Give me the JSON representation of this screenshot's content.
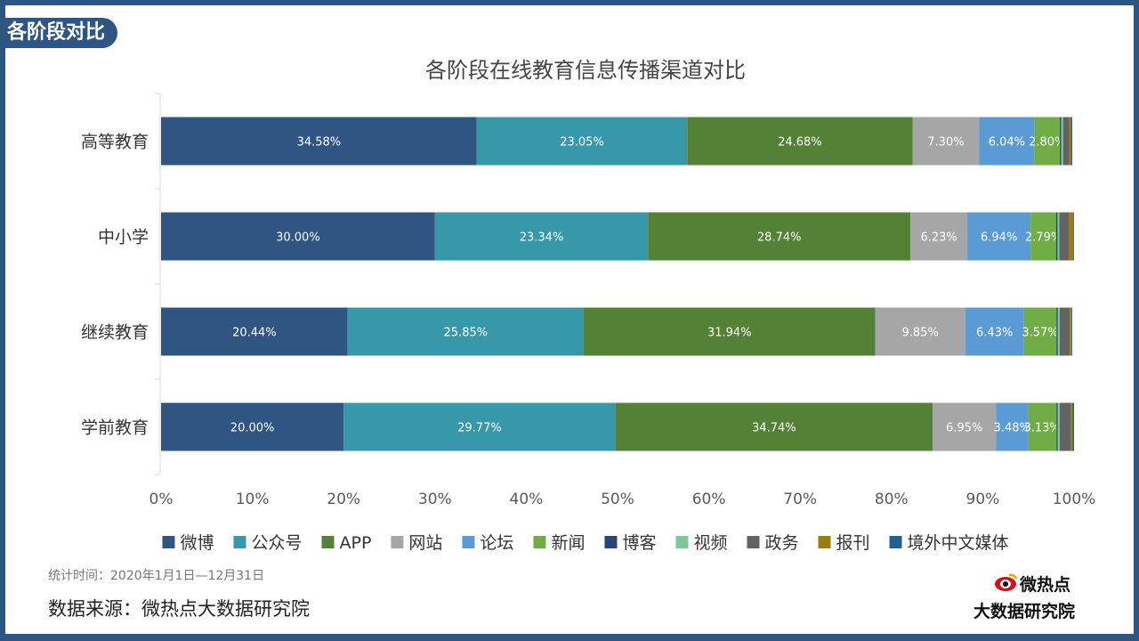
{
  "section_tag": "各阶段对比",
  "footer": {
    "period": "统计时间：2020年1月1日—12月31日",
    "source": "数据来源：微热点大数据研究院"
  },
  "logo": {
    "name": "微热点",
    "sub": "大数据研究院"
  },
  "colors": {
    "frame": "#2f5582",
    "series": [
      "#2f5582",
      "#3698a8",
      "#538135",
      "#a6a6a6",
      "#5b9bd5",
      "#70ad47",
      "#264478",
      "#7cc99a",
      "#636363",
      "#9e7c0c",
      "#255e91"
    ]
  },
  "chart_data": {
    "type": "bar",
    "orientation": "horizontal",
    "stacked": true,
    "title": "各阶段在线教育信息传播渠道对比",
    "categories": [
      "高等教育",
      "中小学",
      "继续教育",
      "学前教育"
    ],
    "xlim": [
      0,
      100
    ],
    "x_ticks": [
      "0%",
      "10%",
      "20%",
      "30%",
      "40%",
      "50%",
      "60%",
      "70%",
      "80%",
      "90%",
      "100%"
    ],
    "legend_position": "bottom",
    "series": [
      {
        "name": "微博",
        "values": [
          34.58,
          30.0,
          20.44,
          20.0
        ],
        "labels": [
          "34.58%",
          "30.00%",
          "20.44%",
          "20.00%"
        ]
      },
      {
        "name": "公众号",
        "values": [
          23.05,
          23.34,
          25.85,
          29.77
        ],
        "labels": [
          "23.05%",
          "23.34%",
          "25.85%",
          "29.77%"
        ]
      },
      {
        "name": "APP",
        "values": [
          24.68,
          28.74,
          31.94,
          34.74
        ],
        "labels": [
          "24.68%",
          "28.74%",
          "31.94%",
          "34.74%"
        ]
      },
      {
        "name": "网站",
        "values": [
          7.3,
          6.23,
          9.85,
          6.95
        ],
        "labels": [
          "7.30%",
          "6.23%",
          "9.85%",
          "6.95%"
        ]
      },
      {
        "name": "论坛",
        "values": [
          6.04,
          6.94,
          6.43,
          3.48
        ],
        "labels": [
          "6.04%",
          "6.94%",
          "6.43%",
          "3.48%"
        ]
      },
      {
        "name": "新闻",
        "values": [
          2.8,
          2.79,
          3.57,
          3.13
        ],
        "labels": [
          "2.80%",
          "2.79%",
          "3.57%",
          "3.13%"
        ]
      },
      {
        "name": "博客",
        "values": [
          0.15,
          0.15,
          0.15,
          0.15
        ],
        "labels": [
          "",
          "",
          "",
          ""
        ]
      },
      {
        "name": "视频",
        "values": [
          0.2,
          0.2,
          0.2,
          0.2
        ],
        "labels": [
          "",
          "",
          "",
          ""
        ]
      },
      {
        "name": "政务",
        "values": [
          0.7,
          1.1,
          1.1,
          1.2
        ],
        "labels": [
          "",
          "",
          "",
          ""
        ]
      },
      {
        "name": "报刊",
        "values": [
          0.15,
          0.45,
          0.2,
          0.2
        ],
        "labels": [
          "",
          "",
          "",
          ""
        ]
      },
      {
        "name": "境外中文媒体",
        "values": [
          0.15,
          0.06,
          0.08,
          0.18
        ],
        "labels": [
          "",
          "",
          "",
          ""
        ]
      }
    ]
  }
}
